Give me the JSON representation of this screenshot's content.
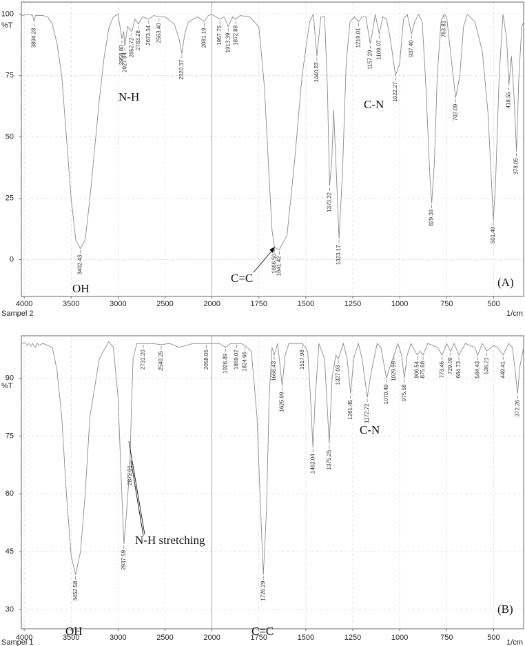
{
  "chart_data": [
    {
      "type": "line",
      "sample_label": "Sampel 2",
      "x_unit": "1/cm",
      "y_label": "%T",
      "corner_label": "(A)",
      "annotations": [
        "OH",
        "N-H",
        "C=C",
        "C-N"
      ],
      "xlim": [
        4030,
        340
      ],
      "xticks": [
        4000,
        3500,
        3000,
        2500,
        2000,
        1750,
        1500,
        1250,
        1000,
        750,
        500
      ],
      "ylim": [
        -15,
        105
      ],
      "yticks": [
        0,
        25,
        50,
        75,
        100
      ],
      "grid": true,
      "x": [
        4030,
        3950,
        3910,
        3894.28,
        3880,
        3800,
        3750,
        3700,
        3650,
        3600,
        3550,
        3500,
        3450,
        3402.43,
        3350,
        3300,
        3250,
        3200,
        3150,
        3100,
        3050,
        3000,
        2958.8,
        2940,
        2927.94,
        2900,
        2852.72,
        2820,
        2783.28,
        2740,
        2673.34,
        2620,
        2563.4,
        2500,
        2400,
        2350,
        2320.37,
        2290,
        2250,
        2150,
        2081.19,
        2040,
        2000,
        1957.75,
        1935,
        1913.39,
        1890,
        1872.88,
        1850,
        1800,
        1750,
        1720,
        1700,
        1680,
        1666.5,
        1655,
        1641.42,
        1600,
        1560,
        1520,
        1480,
        1460,
        1440.83,
        1420,
        1400,
        1385,
        1373.32,
        1362,
        1352,
        1340,
        1323.17,
        1305,
        1285,
        1265,
        1240,
        1219.01,
        1200,
        1180,
        1157.29,
        1140,
        1130,
        1109.07,
        1090,
        1070,
        1050,
        1022.27,
        1000,
        980,
        960,
        937.4,
        920,
        900,
        880,
        860,
        840,
        829.39,
        815,
        800,
        780,
        763.81,
        750,
        730,
        702.09,
        680,
        660,
        640,
        600,
        560,
        530,
        510,
        501.49,
        490,
        470,
        450,
        430,
        418.55,
        405,
        390,
        378.05,
        365,
        350,
        340
      ],
      "series": [
        {
          "color": "#8a8a8a",
          "values": [
            99.5,
            100,
            99.5,
            97,
            99.5,
            99.5,
            99,
            96,
            88,
            75,
            50,
            25,
            8,
            4.5,
            8,
            25,
            45,
            65,
            82,
            94,
            99,
            100,
            90,
            93,
            87,
            95,
            93,
            98,
            96,
            99,
            98,
            99.5,
            99,
            99,
            96,
            90,
            84,
            92,
            97,
            99,
            97,
            99.5,
            100,
            98,
            99,
            95,
            99,
            98,
            99.5,
            99,
            95,
            70,
            40,
            12,
            5,
            4.5,
            4,
            10,
            40,
            75,
            97,
            100,
            83,
            99,
            99,
            70,
            30,
            40,
            61,
            40,
            8.5,
            35,
            80,
            97,
            99,
            97,
            99,
            99,
            88,
            95,
            100,
            92,
            99,
            98,
            90,
            75,
            80,
            98,
            100,
            92,
            97,
            100,
            97,
            70,
            35,
            23,
            40,
            75,
            97,
            100,
            99,
            85,
            66,
            75,
            95,
            100,
            97,
            85,
            60,
            30,
            16,
            30,
            75,
            100,
            90,
            71,
            83,
            65,
            44,
            75,
            95,
            97
          ]
        }
      ],
      "peaks": [
        3894.28,
        3402.43,
        {
          "value": 2958.8,
          "label": "2958.80"
        },
        2927.94,
        2852.72,
        2783.28,
        2673.34,
        {
          "value": 2563.4,
          "label": "2563.40"
        },
        2320.37,
        2081.19,
        1957.75,
        1913.39,
        1872.88,
        {
          "value": 1666.5,
          "label": "1666.50"
        },
        1641.42,
        1440.83,
        1373.32,
        1323.17,
        1219.01,
        1157.29,
        1109.07,
        1022.27,
        {
          "value": 937.4,
          "label": "937.40"
        },
        829.39,
        763.81,
        702.09,
        501.49,
        418.55,
        378.05
      ]
    },
    {
      "type": "line",
      "sample_label": "Sampel 1",
      "x_unit": "1/cm",
      "y_label": "%T",
      "corner_label": "(B)",
      "annotations": [
        "OH",
        "N-H stretching",
        "C=C",
        "C-N"
      ],
      "xlim": [
        4030,
        340
      ],
      "xticks": [
        4000,
        3500,
        3000,
        2500,
        2000,
        1750,
        1500,
        1250,
        1000,
        750,
        500
      ],
      "ylim": [
        25,
        101
      ],
      "yticks": [
        30,
        45,
        60,
        75,
        90
      ],
      "grid": true,
      "x": [
        4030,
        3990,
        3970,
        3950,
        3930,
        3910,
        3880,
        3860,
        3840,
        3800,
        3700,
        3650,
        3600,
        3550,
        3500,
        3452.58,
        3400,
        3350,
        3300,
        3200,
        3100,
        3050,
        3000,
        2960,
        2937.59,
        2910,
        2890,
        2872.01,
        2860,
        2840,
        2800,
        2731.2,
        2640,
        2540.25,
        2450,
        2350,
        2200,
        2058.05,
        2000,
        1960,
        1926.89,
        1900,
        1869.02,
        1845,
        1824.66,
        1790,
        1760,
        1740,
        1726.29,
        1710,
        1695,
        1680,
        1668.43,
        1650,
        1625.99,
        1610,
        1590,
        1517.98,
        1490,
        1475,
        1462.04,
        1450,
        1430,
        1400,
        1375.25,
        1360,
        1340,
        1327.03,
        1300,
        1280,
        1261.45,
        1245,
        1220,
        1200,
        1172.72,
        1150,
        1120,
        1100,
        1070.49,
        1045,
        1029.99,
        1010,
        990,
        975.58,
        960,
        940,
        906.54,
        890,
        875.68,
        850,
        800,
        773.46,
        750,
        729.09,
        710,
        684.73,
        650,
        600,
        584.43,
        560,
        536.21,
        500,
        480,
        449.41,
        420,
        400,
        385,
        372.26,
        360,
        340
      ],
      "series": [
        {
          "color": "#8a8a8a",
          "values": [
            99,
            99.2,
            98.5,
            99,
            98.3,
            99,
            98,
            99,
            98.5,
            99,
            98,
            92,
            80,
            60,
            44,
            39,
            45,
            60,
            80,
            95,
            99.5,
            98,
            85,
            60,
            47,
            55,
            62,
            69,
            80,
            95,
            99,
            99,
            99,
            98.7,
            99,
            98,
            99,
            99,
            99,
            99,
            98,
            99,
            99,
            99,
            98.5,
            97,
            80,
            55,
            39,
            55,
            85,
            98,
            96,
            99,
            88,
            96,
            99,
            99,
            97,
            85,
            72,
            85,
            99,
            95,
            73,
            90,
            96,
            95,
            99,
            95,
            86,
            95,
            99,
            95,
            85,
            92,
            99,
            98,
            90,
            94,
            96,
            99,
            96,
            90,
            96,
            99,
            96,
            97,
            96,
            99,
            98,
            96,
            99,
            97,
            99,
            96,
            99,
            98,
            96,
            99,
            97,
            98.5,
            98,
            96,
            99,
            98,
            92,
            86,
            93,
            98
          ]
        }
      ],
      "peaks": [
        3452.58,
        2937.59,
        2872.01,
        {
          "value": 2731.2,
          "label": "2731.20"
        },
        2540.25,
        2058.05,
        1926.89,
        1869.02,
        1824.66,
        1726.29,
        1668.43,
        1625.99,
        1517.98,
        1462.04,
        1375.25,
        1327.03,
        1261.45,
        1172.72,
        1070.49,
        1029.99,
        975.58,
        906.54,
        875.68,
        773.46,
        729.09,
        684.73,
        584.43,
        536.21,
        449.41,
        372.26
      ]
    }
  ]
}
